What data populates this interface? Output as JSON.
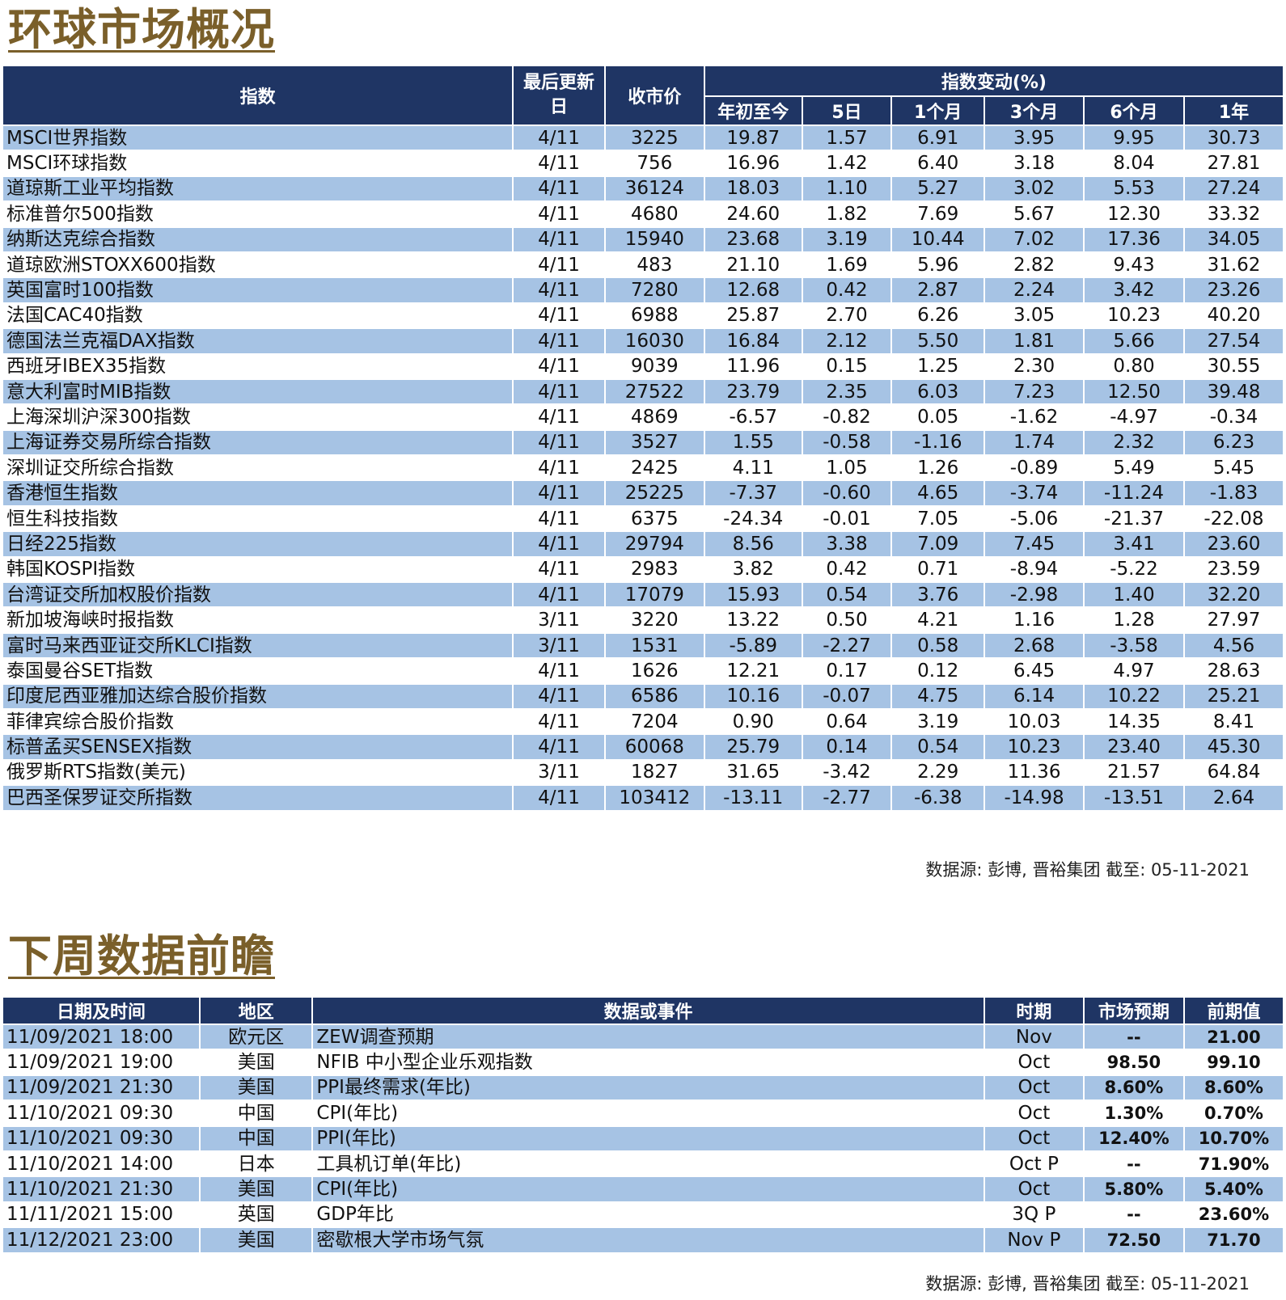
{
  "market_overview": {
    "title": "环球市场概况",
    "headers": {
      "index": "指数",
      "last_update": "最后更新日",
      "close": "收市价",
      "change_group": "指数变动(%)",
      "ytd": "年初至今",
      "d5": "5日",
      "m1": "1个月",
      "m3": "3个月",
      "m6": "6个月",
      "y1": "1年"
    },
    "rows": [
      [
        "MSCI世界指数",
        "4/11",
        "3225",
        "19.87",
        "1.57",
        "6.91",
        "3.95",
        "9.95",
        "30.73"
      ],
      [
        "MSCI环球指数",
        "4/11",
        "756",
        "16.96",
        "1.42",
        "6.40",
        "3.18",
        "8.04",
        "27.81"
      ],
      [
        "道琼斯工业平均指数",
        "4/11",
        "36124",
        "18.03",
        "1.10",
        "5.27",
        "3.02",
        "5.53",
        "27.24"
      ],
      [
        "标准普尔500指数",
        "4/11",
        "4680",
        "24.60",
        "1.82",
        "7.69",
        "5.67",
        "12.30",
        "33.32"
      ],
      [
        "纳斯达克综合指数",
        "4/11",
        "15940",
        "23.68",
        "3.19",
        "10.44",
        "7.02",
        "17.36",
        "34.05"
      ],
      [
        "道琼欧洲STOXX600指数",
        "4/11",
        "483",
        "21.10",
        "1.69",
        "5.96",
        "2.82",
        "9.43",
        "31.62"
      ],
      [
        "英国富时100指数",
        "4/11",
        "7280",
        "12.68",
        "0.42",
        "2.87",
        "2.24",
        "3.42",
        "23.26"
      ],
      [
        "法国CAC40指数",
        "4/11",
        "6988",
        "25.87",
        "2.70",
        "6.26",
        "3.05",
        "10.23",
        "40.20"
      ],
      [
        "德国法兰克福DAX指数",
        "4/11",
        "16030",
        "16.84",
        "2.12",
        "5.50",
        "1.81",
        "5.66",
        "27.54"
      ],
      [
        "西班牙IBEX35指数",
        "4/11",
        "9039",
        "11.96",
        "0.15",
        "1.25",
        "2.30",
        "0.80",
        "30.55"
      ],
      [
        "意大利富时MIB指数",
        "4/11",
        "27522",
        "23.79",
        "2.35",
        "6.03",
        "7.23",
        "12.50",
        "39.48"
      ],
      [
        "上海深圳沪深300指数",
        "4/11",
        "4869",
        "-6.57",
        "-0.82",
        "0.05",
        "-1.62",
        "-4.97",
        "-0.34"
      ],
      [
        "上海证券交易所综合指数",
        "4/11",
        "3527",
        "1.55",
        "-0.58",
        "-1.16",
        "1.74",
        "2.32",
        "6.23"
      ],
      [
        "深圳证交所综合指数",
        "4/11",
        "2425",
        "4.11",
        "1.05",
        "1.26",
        "-0.89",
        "5.49",
        "5.45"
      ],
      [
        "香港恒生指数",
        "4/11",
        "25225",
        "-7.37",
        "-0.60",
        "4.65",
        "-3.74",
        "-11.24",
        "-1.83"
      ],
      [
        "恒生科技指数",
        "4/11",
        "6375",
        "-24.34",
        "-0.01",
        "7.05",
        "-5.06",
        "-21.37",
        "-22.08"
      ],
      [
        "日经225指数",
        "4/11",
        "29794",
        "8.56",
        "3.38",
        "7.09",
        "7.45",
        "3.41",
        "23.60"
      ],
      [
        "韩国KOSPI指数",
        "4/11",
        "2983",
        "3.82",
        "0.42",
        "0.71",
        "-8.94",
        "-5.22",
        "23.59"
      ],
      [
        "台湾证交所加权股价指数",
        "4/11",
        "17079",
        "15.93",
        "0.54",
        "3.76",
        "-2.98",
        "1.40",
        "32.20"
      ],
      [
        "新加坡海峡时报指数",
        "3/11",
        "3220",
        "13.22",
        "0.50",
        "4.21",
        "1.16",
        "1.28",
        "27.97"
      ],
      [
        "富时马来西亚证交所KLCI指数",
        "3/11",
        "1531",
        "-5.89",
        "-2.27",
        "0.58",
        "2.68",
        "-3.58",
        "4.56"
      ],
      [
        "泰国曼谷SET指数",
        "4/11",
        "1626",
        "12.21",
        "0.17",
        "0.12",
        "6.45",
        "4.97",
        "28.63"
      ],
      [
        "印度尼西亚雅加达综合股价指数",
        "4/11",
        "6586",
        "10.16",
        "-0.07",
        "4.75",
        "6.14",
        "10.22",
        "25.21"
      ],
      [
        "菲律宾综合股价指数",
        "4/11",
        "7204",
        "0.90",
        "0.64",
        "3.19",
        "10.03",
        "14.35",
        "8.41"
      ],
      [
        "标普孟买SENSEX指数",
        "4/11",
        "60068",
        "25.79",
        "0.14",
        "0.54",
        "10.23",
        "23.40",
        "45.30"
      ],
      [
        "俄罗斯RTS指数(美元)",
        "3/11",
        "1827",
        "31.65",
        "-3.42",
        "2.29",
        "11.36",
        "21.57",
        "64.84"
      ],
      [
        "巴西圣保罗证交所指数",
        "4/11",
        "103412",
        "-13.11",
        "-2.77",
        "-6.38",
        "-14.98",
        "-13.51",
        "2.64"
      ]
    ],
    "source": "数据源: 彭博, 晋裕集团 截至: 05-11-2021"
  },
  "next_week": {
    "title": "下周数据前瞻",
    "headers": {
      "datetime": "日期及时间",
      "region": "地区",
      "event": "数据或事件",
      "period": "时期",
      "forecast": "市场预期",
      "previous": "前期值"
    },
    "rows": [
      [
        "11/09/2021 18:00",
        "欧元区",
        "ZEW调查预期",
        "Nov",
        "--",
        "21.00"
      ],
      [
        "11/09/2021 19:00",
        "美国",
        "NFIB 中小型企业乐观指数",
        "Oct",
        "98.50",
        "99.10"
      ],
      [
        "11/09/2021 21:30",
        "美国",
        "PPI最终需求(年比)",
        "Oct",
        "8.60%",
        "8.60%"
      ],
      [
        "11/10/2021 09:30",
        "中国",
        "CPI(年比)",
        "Oct",
        "1.30%",
        "0.70%"
      ],
      [
        "11/10/2021 09:30",
        "中国",
        "PPI(年比)",
        "Oct",
        "12.40%",
        "10.70%"
      ],
      [
        "11/10/2021 14:00",
        "日本",
        "工具机订单(年比)",
        "Oct P",
        "--",
        "71.90%"
      ],
      [
        "11/10/2021 21:30",
        "美国",
        "CPI(年比)",
        "Oct",
        "5.80%",
        "5.40%"
      ],
      [
        "11/11/2021 15:00",
        "英国",
        "GDP年比",
        "3Q P",
        "--",
        "23.60%"
      ],
      [
        "11/12/2021 23:00",
        "美国",
        "密歇根大学市场气氛",
        "Nov P",
        "72.50",
        "71.70"
      ]
    ],
    "source": "数据源: 彭博, 晋裕集团 截至: 05-11-2021"
  }
}
